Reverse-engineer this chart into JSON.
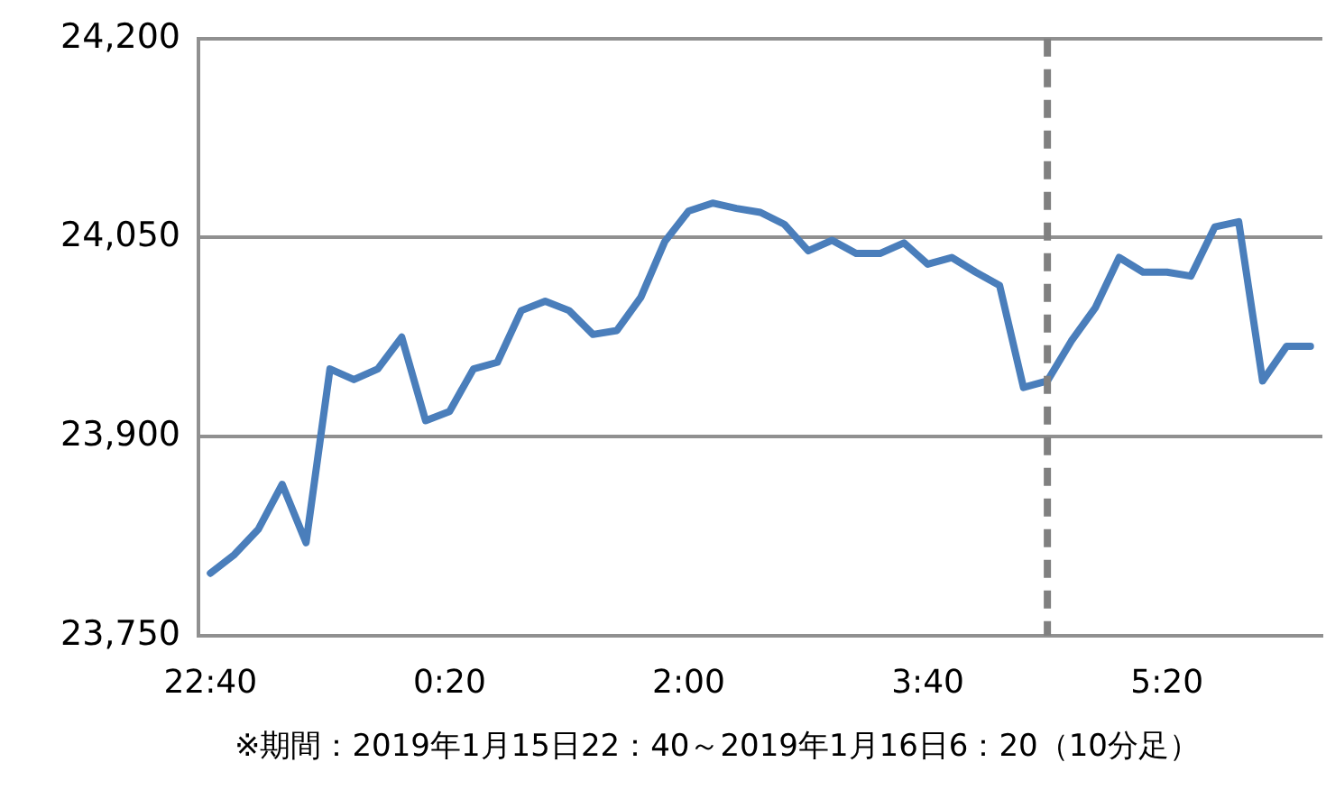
{
  "chart_data": {
    "type": "line",
    "x": [
      "2019-01-15T22:40",
      "2019-01-15T22:50",
      "2019-01-15T23:00",
      "2019-01-15T23:10",
      "2019-01-15T23:20",
      "2019-01-15T23:30",
      "2019-01-15T23:40",
      "2019-01-15T23:50",
      "2019-01-16T00:00",
      "2019-01-16T00:10",
      "2019-01-16T00:20",
      "2019-01-16T00:30",
      "2019-01-16T00:40",
      "2019-01-16T00:50",
      "2019-01-16T01:00",
      "2019-01-16T01:10",
      "2019-01-16T01:20",
      "2019-01-16T01:30",
      "2019-01-16T01:40",
      "2019-01-16T01:50",
      "2019-01-16T02:00",
      "2019-01-16T02:10",
      "2019-01-16T02:20",
      "2019-01-16T02:30",
      "2019-01-16T02:40",
      "2019-01-16T02:50",
      "2019-01-16T03:00",
      "2019-01-16T03:10",
      "2019-01-16T03:20",
      "2019-01-16T03:30",
      "2019-01-16T03:40",
      "2019-01-16T03:50",
      "2019-01-16T04:00",
      "2019-01-16T04:10",
      "2019-01-16T04:20",
      "2019-01-16T04:30",
      "2019-01-16T04:40",
      "2019-01-16T04:50",
      "2019-01-16T05:00",
      "2019-01-16T05:10",
      "2019-01-16T05:20",
      "2019-01-16T05:30",
      "2019-01-16T05:40",
      "2019-01-16T05:50",
      "2019-01-16T06:00",
      "2019-01-16T06:10",
      "2019-01-16T06:20"
    ],
    "series": [
      {
        "color": "#4a7ebb",
        "values": [
          23797,
          23811,
          23830,
          23864,
          23820,
          23951,
          23943,
          23951,
          23975,
          23912,
          23919,
          23951,
          23956,
          23995,
          24002,
          23995,
          23977,
          23980,
          24005,
          24047,
          24070,
          24076,
          24072,
          24069,
          24060,
          24040,
          24048,
          24038,
          24038,
          24046,
          24030,
          24035,
          24024,
          24014,
          23937,
          23942,
          23972,
          23997,
          24035,
          24024,
          24024,
          24021,
          24058,
          24062,
          23942,
          23968,
          23968
        ]
      }
    ],
    "xlim": [
      "2019-01-15T22:35",
      "2019-01-16T06:25"
    ],
    "xticks": [
      {
        "value": "2019-01-15T22:40",
        "label": "22:40"
      },
      {
        "value": "2019-01-16T00:20",
        "label": "0:20"
      },
      {
        "value": "2019-01-16T02:00",
        "label": "2:00"
      },
      {
        "value": "2019-01-16T03:40",
        "label": "3:40"
      },
      {
        "value": "2019-01-16T05:20",
        "label": "5:20"
      }
    ],
    "ylim": [
      23750,
      24200
    ],
    "yticks": [
      {
        "value": 23750,
        "label": "23,750"
      },
      {
        "value": 23900,
        "label": "23,900"
      },
      {
        "value": 24050,
        "label": "24,050"
      },
      {
        "value": 24200,
        "label": "24,200"
      }
    ],
    "grid": "y",
    "legend": false,
    "marker": "none",
    "line_style": "solid",
    "ref_lines": [
      {
        "axis": "x",
        "value": "2019-01-16T04:30",
        "color": "#808080",
        "line_style": "dashed"
      }
    ],
    "annotations": [
      "※期間：2019年1月15日22：40～2019年1月16日6：20（10分足）"
    ]
  }
}
